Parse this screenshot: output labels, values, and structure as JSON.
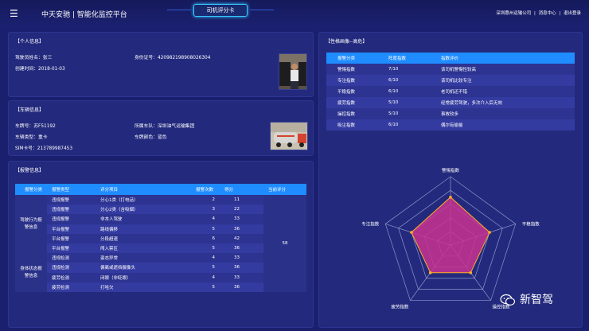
{
  "header": {
    "menu_icon": "hamburger-icon",
    "brand": "中天安驰 | 智能化监控平台",
    "center_tab": "司机评分卡",
    "company": "深圳惠州运输公司",
    "message_center": "消息中心",
    "logout": "退出登录",
    "separator": "|"
  },
  "personal": {
    "title": "【个人信息】",
    "name_label": "驾驶员姓名：",
    "name": "张三",
    "id_label": "身份证号：",
    "id": "420982198908026304",
    "created_label": "创建时间：",
    "created": "2018-01-03"
  },
  "vehicle": {
    "title": "【车辆信息】",
    "plate_label": "车牌号：",
    "plate": "苏F51192",
    "fleet_label": "所属车队：",
    "fleet": "深圳油气运输集团",
    "type_label": "车辆类型：",
    "type": "重卡",
    "color_label": "车牌颜色：",
    "color": "蓝色",
    "sim_label": "SIM卡号：",
    "sim": "213789987453"
  },
  "alarm": {
    "title": "【报警信息】",
    "headers": [
      "报警分类",
      "报警类型",
      "评分项目",
      "报警次数",
      "得分",
      "当前评分"
    ],
    "group1": "驾驶行为报警信息",
    "group2": "身体状态报警信息",
    "current_score": "58",
    "rows": [
      {
        "type": "违规报警",
        "item": "分心1类（打电话）",
        "count": "2",
        "score": "11"
      },
      {
        "type": "违规报警",
        "item": "分心2类（含吸烟）",
        "count": "3",
        "score": "22"
      },
      {
        "type": "违规报警",
        "item": "非本人驾驶",
        "count": "4",
        "score": "33"
      },
      {
        "type": "平台报警",
        "item": "路线偏移",
        "count": "5",
        "score": "36"
      },
      {
        "type": "平台报警",
        "item": "分段超速",
        "count": "6",
        "score": "42"
      },
      {
        "type": "平台报警",
        "item": "闯入禁区",
        "count": "5",
        "score": "36"
      },
      {
        "type": "违规检测",
        "item": "姿态异常",
        "count": "4",
        "score": "33"
      },
      {
        "type": "违规检测",
        "item": "偏离或遮挡摄像头",
        "count": "5",
        "score": "36"
      },
      {
        "type": "疲劳检测",
        "item": "闭眼（非眨眼）",
        "count": "4",
        "score": "33"
      },
      {
        "type": "疲劳检测",
        "item": "打哈欠",
        "count": "5",
        "score": "36"
      }
    ]
  },
  "personality": {
    "title": "【性格画像--高危】",
    "headers": [
      "报警分类",
      "阵度指数",
      "指数评价"
    ],
    "rows": [
      {
        "cat": "警惕指数",
        "val": "7/10",
        "desc": "该司机警惕性较高"
      },
      {
        "cat": "专注指数",
        "val": "6/10",
        "desc": "该司机比较专注"
      },
      {
        "cat": "平稳指数",
        "val": "6/10",
        "desc": "老司机还不错"
      },
      {
        "cat": "疲劳指数",
        "val": "5/10",
        "desc": "经常疲劳驾驶，多次介入后无效"
      },
      {
        "cat": "操控指数",
        "val": "5/10",
        "desc": "事故较多"
      },
      {
        "cat": "吸尘指数",
        "val": "6/10",
        "desc": "偶尔有偷偷"
      }
    ]
  },
  "chart_data": {
    "type": "radar",
    "axes": [
      "警惕指数",
      "平稳指数",
      "操控指数",
      "疲劳指数",
      "专注指数"
    ],
    "values": [
      7,
      6,
      5,
      5,
      6
    ],
    "max": 10,
    "rings": 5,
    "fill_color": "#c8328f",
    "line_color": "#ffb020"
  },
  "watermark": {
    "icon": "wechat-icon",
    "text": "新智驾"
  }
}
